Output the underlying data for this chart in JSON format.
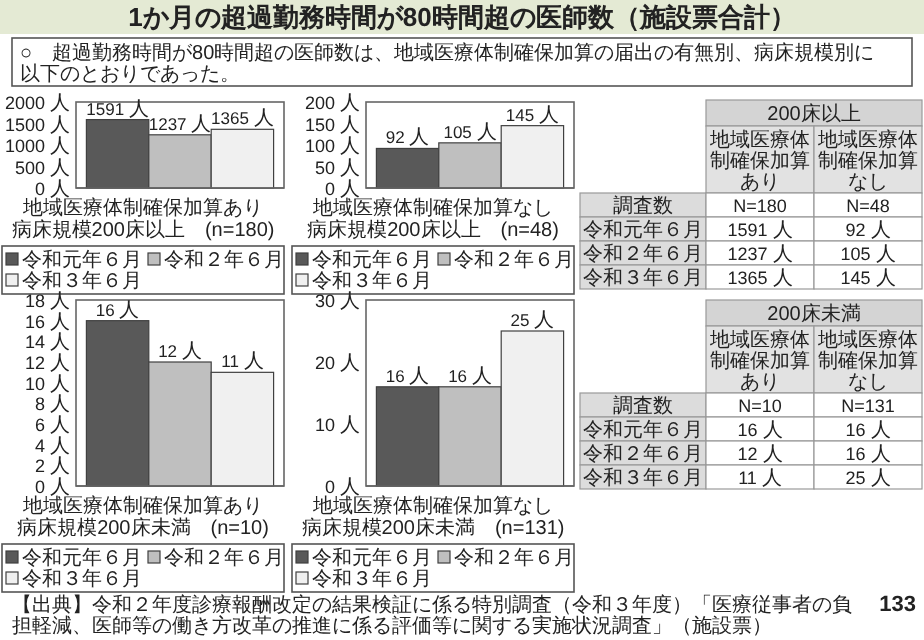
{
  "chart_data": [
    {
      "type": "other",
      "title": "1か月の超過勤務時間が80時間超の医師数（施設票合計）",
      "subtitle": "○　超過勤務時間が80時間超の医師数は、地域医療体制確保加算の届出の有無別、病床規模別に以下のとおりであった。",
      "annotations": [
        "【出典】令和２年度診療報酬改定の結果検証に係る特別調査（令和３年度）「医療従事者の負担軽減、医師等の働き方改革の推進に係る評価等に関する実施状況調査」（施設票）",
        "133"
      ]
    },
    {
      "type": "bar",
      "categories": [
        null
      ],
      "xlabel": "地域医療体制確保加算あり",
      "annotations": [
        "病床規模200床以上　(n=180)"
      ],
      "ylim": [
        0,
        2000
      ],
      "yticks": [
        {
          "value": 0,
          "label": "0 人"
        },
        {
          "value": 500,
          "label": "500 人"
        },
        {
          "value": 1000,
          "label": "1000 人"
        },
        {
          "value": 1500,
          "label": "1500 人"
        },
        {
          "value": 2000,
          "label": "2000 人"
        }
      ],
      "legend": "bottom",
      "series": [
        {
          "name": "令和元年６月",
          "color": "#595959",
          "values": [
            1591
          ],
          "value_labels": [
            "1591 人"
          ]
        },
        {
          "name": "令和２年６月",
          "color": "#bfbfbf",
          "values": [
            1237
          ],
          "value_labels": [
            "1237 人"
          ]
        },
        {
          "name": "令和３年６月",
          "color": "#f0f0f0",
          "values": [
            1365
          ],
          "value_labels": [
            "1365 人"
          ]
        }
      ]
    },
    {
      "type": "bar",
      "categories": [
        null
      ],
      "xlabel": "地域医療体制確保加算なし",
      "annotations": [
        "病床規模200床以上　(n=48)"
      ],
      "ylim": [
        0,
        200
      ],
      "yticks": [
        {
          "value": 0,
          "label": "0 人"
        },
        {
          "value": 50,
          "label": "50 人"
        },
        {
          "value": 100,
          "label": "100 人"
        },
        {
          "value": 150,
          "label": "150 人"
        },
        {
          "value": 200,
          "label": "200 人"
        }
      ],
      "legend": "bottom",
      "series": [
        {
          "name": "令和元年６月",
          "color": "#595959",
          "values": [
            92
          ],
          "value_labels": [
            "92 人"
          ]
        },
        {
          "name": "令和２年６月",
          "color": "#bfbfbf",
          "values": [
            105
          ],
          "value_labels": [
            "105 人"
          ]
        },
        {
          "name": "令和３年６月",
          "color": "#f0f0f0",
          "values": [
            145
          ],
          "value_labels": [
            "145 人"
          ]
        }
      ]
    },
    {
      "type": "other",
      "title": "200床以上",
      "categories": [
        "地域医療体制確保加算あり",
        "地域医療体制確保加算なし"
      ],
      "y_categories": [
        "調査数",
        "令和元年６月",
        "令和２年６月",
        "令和３年６月"
      ],
      "cell_labels": [
        [
          "N=180",
          "N=48"
        ],
        [
          "1591 人",
          "92 人"
        ],
        [
          "1237 人",
          "105 人"
        ],
        [
          "1365 人",
          "145 人"
        ]
      ]
    },
    {
      "type": "bar",
      "categories": [
        null
      ],
      "xlabel": "地域医療体制確保加算あり",
      "annotations": [
        "病床規模200床未満　(n=10)"
      ],
      "ylim": [
        0,
        18
      ],
      "yticks": [
        {
          "value": 0,
          "label": "0 人"
        },
        {
          "value": 2,
          "label": "2 人"
        },
        {
          "value": 4,
          "label": "4 人"
        },
        {
          "value": 6,
          "label": "6 人"
        },
        {
          "value": 8,
          "label": "8 人"
        },
        {
          "value": 10,
          "label": "10 人"
        },
        {
          "value": 12,
          "label": "12 人"
        },
        {
          "value": 14,
          "label": "14 人"
        },
        {
          "value": 16,
          "label": "16 人"
        },
        {
          "value": 18,
          "label": "18 人"
        }
      ],
      "legend": "bottom",
      "series": [
        {
          "name": "令和元年６月",
          "color": "#595959",
          "values": [
            16
          ],
          "value_labels": [
            "16 人"
          ]
        },
        {
          "name": "令和２年６月",
          "color": "#bfbfbf",
          "values": [
            12
          ],
          "value_labels": [
            "12 人"
          ]
        },
        {
          "name": "令和３年６月",
          "color": "#f0f0f0",
          "values": [
            11
          ],
          "value_labels": [
            "11 人"
          ]
        }
      ]
    },
    {
      "type": "bar",
      "categories": [
        null
      ],
      "xlabel": "地域医療体制確保加算なし",
      "annotations": [
        "病床規模200床未満　(n=131)"
      ],
      "ylim": [
        0,
        30
      ],
      "yticks": [
        {
          "value": 0,
          "label": "0 人"
        },
        {
          "value": 10,
          "label": "10 人"
        },
        {
          "value": 20,
          "label": "20 人"
        },
        {
          "value": 30,
          "label": "30 人"
        }
      ],
      "legend": "bottom",
      "series": [
        {
          "name": "令和元年６月",
          "color": "#595959",
          "values": [
            16
          ],
          "value_labels": [
            "16 人"
          ]
        },
        {
          "name": "令和２年６月",
          "color": "#bfbfbf",
          "values": [
            16
          ],
          "value_labels": [
            "16 人"
          ]
        },
        {
          "name": "令和３年６月",
          "color": "#f0f0f0",
          "values": [
            25
          ],
          "value_labels": [
            "25 人"
          ]
        }
      ]
    },
    {
      "type": "other",
      "title": "200床未満",
      "categories": [
        "地域医療体制確保加算あり",
        "地域医療体制確保加算なし"
      ],
      "y_categories": [
        "調査数",
        "令和元年６月",
        "令和２年６月",
        "令和３年６月"
      ],
      "cell_labels": [
        [
          "N=10",
          "N=131"
        ],
        [
          "16 人",
          "16 人"
        ],
        [
          "12 人",
          "16 人"
        ],
        [
          "11 人",
          "25 人"
        ]
      ]
    }
  ]
}
